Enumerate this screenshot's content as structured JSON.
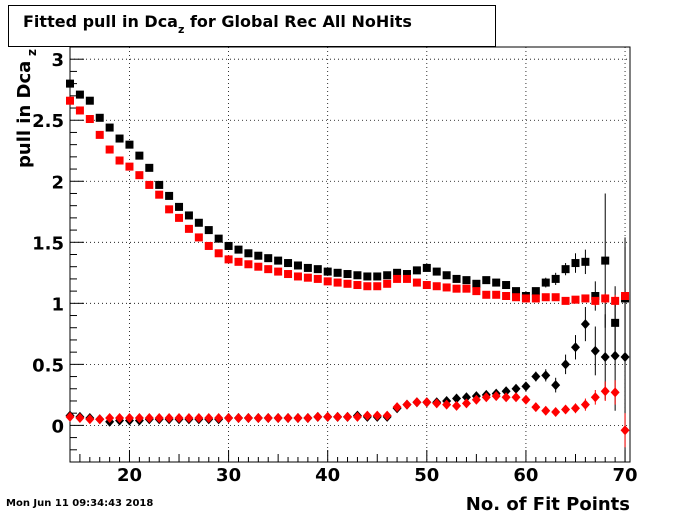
{
  "title": {
    "main": "Fitted pull in Dca",
    "sub": "z",
    "rest": " for Global Rec All NoHits"
  },
  "footer": {
    "date": "Mon Jun 11 09:34:43 2018"
  },
  "chart_data": {
    "type": "scatter",
    "xlabel": "No. of Fit Points",
    "ylabel": "pull in Dca",
    "ylabel_sub": "z",
    "xlim": [
      14,
      70.5
    ],
    "ylim": [
      -0.3,
      3.1
    ],
    "xticks": [
      20,
      30,
      40,
      50,
      60,
      70
    ],
    "yticks": [
      0,
      0.5,
      1,
      1.5,
      2,
      2.5,
      3
    ],
    "ytick_labels": [
      "0",
      "0.5",
      "1",
      "1.5",
      "2",
      "2.5",
      "3"
    ],
    "grid": true,
    "colors": {
      "black": "#000000",
      "red": "#ff0000"
    },
    "series": [
      {
        "marker": "square",
        "color": "#000000",
        "x": [
          14,
          15,
          16,
          17,
          18,
          19,
          20,
          21,
          22,
          23,
          24,
          25,
          26,
          27,
          28,
          29,
          30,
          31,
          32,
          33,
          34,
          35,
          36,
          37,
          38,
          39,
          40,
          41,
          42,
          43,
          44,
          45,
          46,
          47,
          48,
          49,
          50,
          51,
          52,
          53,
          54,
          55,
          56,
          57,
          58,
          59,
          60,
          61,
          62,
          63,
          64,
          65,
          66,
          67,
          68,
          69,
          70
        ],
        "y": [
          2.8,
          2.71,
          2.66,
          2.52,
          2.44,
          2.35,
          2.3,
          2.21,
          2.11,
          1.97,
          1.88,
          1.79,
          1.72,
          1.66,
          1.6,
          1.53,
          1.47,
          1.44,
          1.41,
          1.39,
          1.37,
          1.35,
          1.33,
          1.31,
          1.29,
          1.28,
          1.26,
          1.25,
          1.24,
          1.23,
          1.22,
          1.22,
          1.23,
          1.25,
          1.24,
          1.27,
          1.29,
          1.26,
          1.23,
          1.2,
          1.19,
          1.16,
          1.19,
          1.17,
          1.15,
          1.1,
          1.06,
          1.1,
          1.17,
          1.2,
          1.28,
          1.33,
          1.34,
          1.06,
          1.35,
          0.84,
          1.04
        ],
        "err": [
          0,
          0,
          0,
          0,
          0,
          0,
          0,
          0,
          0,
          0,
          0,
          0,
          0,
          0,
          0,
          0,
          0,
          0,
          0,
          0,
          0,
          0,
          0,
          0,
          0,
          0,
          0,
          0,
          0,
          0,
          0,
          0,
          0,
          0,
          0,
          0,
          0,
          0,
          0,
          0,
          0,
          0,
          0,
          0,
          0,
          0,
          0,
          0,
          0.04,
          0.05,
          0.05,
          0.08,
          0.1,
          0.12,
          0.55,
          0.3,
          0.5
        ]
      },
      {
        "marker": "square",
        "color": "#ff0000",
        "x": [
          14,
          15,
          16,
          17,
          18,
          19,
          20,
          21,
          22,
          23,
          24,
          25,
          26,
          27,
          28,
          29,
          30,
          31,
          32,
          33,
          34,
          35,
          36,
          37,
          38,
          39,
          40,
          41,
          42,
          43,
          44,
          45,
          46,
          47,
          48,
          49,
          50,
          51,
          52,
          53,
          54,
          55,
          56,
          57,
          58,
          59,
          60,
          61,
          62,
          63,
          64,
          65,
          66,
          67,
          68,
          69,
          70
        ],
        "y": [
          2.66,
          2.58,
          2.51,
          2.38,
          2.26,
          2.17,
          2.12,
          2.05,
          1.97,
          1.89,
          1.77,
          1.7,
          1.61,
          1.54,
          1.47,
          1.41,
          1.36,
          1.34,
          1.32,
          1.3,
          1.28,
          1.26,
          1.24,
          1.22,
          1.21,
          1.2,
          1.18,
          1.17,
          1.16,
          1.15,
          1.14,
          1.14,
          1.16,
          1.2,
          1.2,
          1.17,
          1.15,
          1.14,
          1.13,
          1.12,
          1.12,
          1.1,
          1.07,
          1.07,
          1.06,
          1.05,
          1.04,
          1.04,
          1.05,
          1.05,
          1.02,
          1.03,
          1.04,
          1.02,
          1.04,
          1.02,
          1.06
        ],
        "err": [
          0,
          0,
          0,
          0,
          0,
          0,
          0,
          0,
          0,
          0,
          0,
          0,
          0,
          0,
          0,
          0,
          0,
          0,
          0,
          0,
          0,
          0,
          0,
          0,
          0,
          0,
          0,
          0,
          0,
          0,
          0,
          0,
          0,
          0,
          0,
          0,
          0,
          0,
          0,
          0,
          0,
          0,
          0,
          0,
          0,
          0,
          0,
          0,
          0,
          0,
          0,
          0,
          0,
          0.04,
          0.04,
          0.05,
          0.06
        ]
      },
      {
        "marker": "diamond",
        "color": "#000000",
        "x": [
          14,
          15,
          16,
          17,
          18,
          19,
          20,
          21,
          22,
          23,
          24,
          25,
          26,
          27,
          28,
          29,
          30,
          31,
          32,
          33,
          34,
          35,
          36,
          37,
          38,
          39,
          40,
          41,
          42,
          43,
          44,
          45,
          46,
          47,
          48,
          49,
          50,
          51,
          52,
          53,
          54,
          55,
          56,
          57,
          58,
          59,
          60,
          61,
          62,
          63,
          64,
          65,
          66,
          67,
          68,
          69,
          70
        ],
        "y": [
          0.08,
          0.07,
          0.06,
          0.05,
          0.03,
          0.04,
          0.04,
          0.04,
          0.05,
          0.05,
          0.05,
          0.05,
          0.05,
          0.05,
          0.05,
          0.05,
          0.06,
          0.06,
          0.06,
          0.06,
          0.06,
          0.06,
          0.06,
          0.06,
          0.06,
          0.07,
          0.07,
          0.07,
          0.07,
          0.08,
          0.07,
          0.07,
          0.07,
          0.14,
          0.17,
          0.19,
          0.19,
          0.19,
          0.2,
          0.22,
          0.23,
          0.24,
          0.25,
          0.26,
          0.28,
          0.3,
          0.32,
          0.4,
          0.41,
          0.33,
          0.5,
          0.64,
          0.83,
          0.61,
          0.56,
          0.57,
          0.56
        ],
        "err": [
          0,
          0,
          0,
          0,
          0,
          0,
          0,
          0,
          0,
          0,
          0,
          0,
          0,
          0,
          0,
          0,
          0,
          0,
          0,
          0,
          0,
          0,
          0,
          0,
          0,
          0,
          0,
          0,
          0,
          0,
          0,
          0,
          0,
          0,
          0,
          0,
          0,
          0,
          0,
          0,
          0,
          0,
          0,
          0,
          0,
          0,
          0,
          0.04,
          0.05,
          0.06,
          0.08,
          0.1,
          0.14,
          0.2,
          0.35,
          0.45,
          0.9
        ]
      },
      {
        "marker": "diamond",
        "color": "#ff0000",
        "x": [
          14,
          15,
          16,
          17,
          18,
          19,
          20,
          21,
          22,
          23,
          24,
          25,
          26,
          27,
          28,
          29,
          30,
          31,
          32,
          33,
          34,
          35,
          36,
          37,
          38,
          39,
          40,
          41,
          42,
          43,
          44,
          45,
          46,
          47,
          48,
          49,
          50,
          51,
          52,
          53,
          54,
          55,
          56,
          57,
          58,
          59,
          60,
          61,
          62,
          63,
          64,
          65,
          66,
          67,
          68,
          69,
          70
        ],
        "y": [
          0.07,
          0.06,
          0.05,
          0.05,
          0.06,
          0.06,
          0.06,
          0.06,
          0.06,
          0.06,
          0.06,
          0.06,
          0.06,
          0.06,
          0.06,
          0.06,
          0.06,
          0.06,
          0.06,
          0.06,
          0.06,
          0.06,
          0.06,
          0.06,
          0.06,
          0.07,
          0.07,
          0.07,
          0.07,
          0.07,
          0.08,
          0.08,
          0.08,
          0.15,
          0.17,
          0.19,
          0.19,
          0.18,
          0.17,
          0.16,
          0.18,
          0.21,
          0.23,
          0.24,
          0.23,
          0.23,
          0.21,
          0.15,
          0.12,
          0.11,
          0.13,
          0.14,
          0.17,
          0.23,
          0.28,
          0.27,
          -0.04
        ],
        "err": [
          0,
          0,
          0,
          0,
          0,
          0,
          0,
          0,
          0,
          0,
          0,
          0,
          0,
          0,
          0,
          0,
          0,
          0,
          0,
          0,
          0,
          0,
          0,
          0,
          0,
          0,
          0,
          0,
          0,
          0,
          0,
          0,
          0,
          0,
          0,
          0,
          0,
          0,
          0,
          0,
          0,
          0,
          0,
          0,
          0,
          0,
          0,
          0,
          0,
          0.03,
          0.03,
          0.04,
          0.05,
          0.06,
          0.08,
          0.1,
          0.14
        ]
      }
    ]
  }
}
